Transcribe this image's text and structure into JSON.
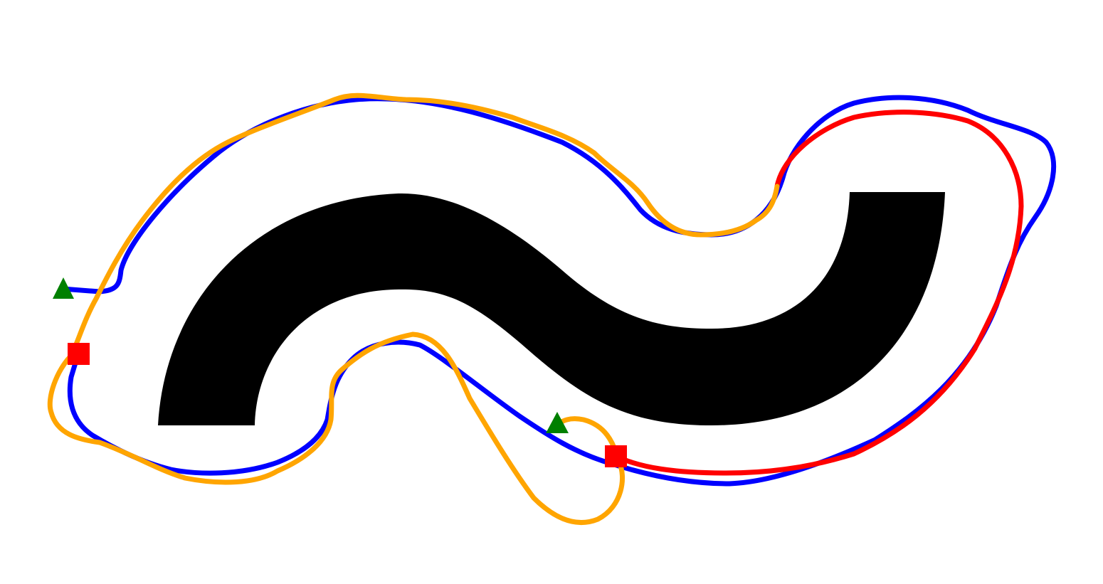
{
  "colors": {
    "background": "#ffffff",
    "obstacle": "#000000",
    "path_a": "#0000ff",
    "path_b": "#ffa500",
    "path_c": "#ff0000",
    "start_marker": "#008000",
    "goal_marker": "#ff0000"
  },
  "legend": [],
  "markers": [
    {
      "kind": "start",
      "shape": "triangle",
      "color": "#008000"
    },
    {
      "kind": "goal",
      "shape": "square",
      "color": "#ff0000"
    },
    {
      "kind": "start",
      "shape": "triangle",
      "color": "#008000"
    },
    {
      "kind": "goal",
      "shape": "square",
      "color": "#ff0000"
    }
  ]
}
